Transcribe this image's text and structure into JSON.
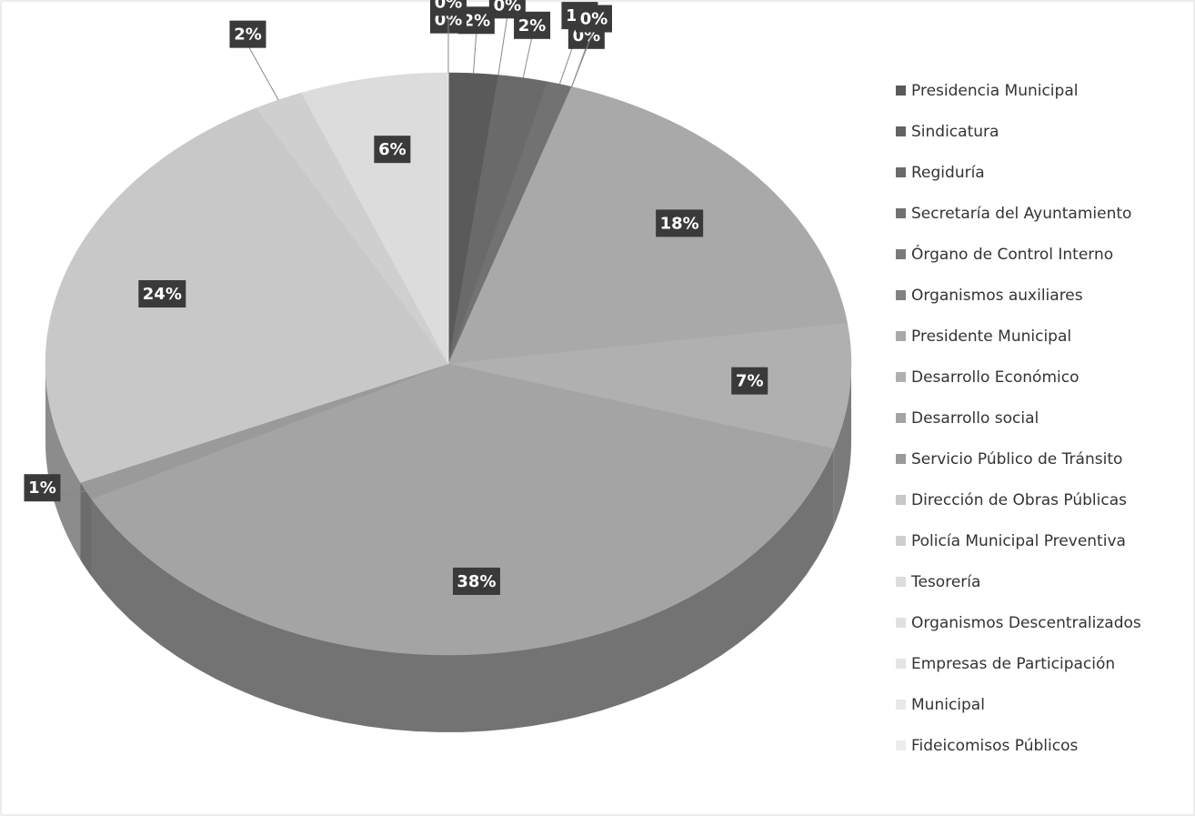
{
  "chart_data": {
    "type": "pie3d",
    "categories": [
      "Presidencia Municipal",
      "Sindicatura",
      "Regiduría",
      "Secretaría del Ayuntamiento",
      "Órgano de Control Interno",
      "Organismos auxiliares",
      "Presidente Municipal",
      "Desarrollo Económico",
      "Desarrollo social",
      "Servicio Público de Tránsito",
      "Dirección de Obras Públicas",
      "Policía Municipal Preventiva",
      "Tesorería",
      "Organismos Descentralizados",
      "Empresas de Participación",
      "Municipal",
      "Fideicomisos Públicos"
    ],
    "values": [
      2,
      0,
      2,
      1,
      0,
      0,
      18,
      7,
      38,
      1,
      24,
      2,
      6,
      0,
      0,
      0,
      0
    ],
    "value_labels": [
      "2%",
      "0%",
      "2%",
      "1%",
      "0%",
      "0%",
      "18%",
      "7%",
      "38%",
      "1%",
      "24%",
      "2%",
      "6%",
      "0%",
      "0%",
      "0%",
      "0%"
    ],
    "colors": [
      "#5a5a5a",
      "#626262",
      "#6a6a6a",
      "#727272",
      "#7a7a7a",
      "#828282",
      "#a9a9a9",
      "#b0b0b0",
      "#a4a4a4",
      "#9a9a9a",
      "#c8c8c8",
      "#cfcfcf",
      "#dcdcdc",
      "#e0e0e0",
      "#e4e4e4",
      "#e8e8e8",
      "#ececec"
    ],
    "legend": "right"
  }
}
